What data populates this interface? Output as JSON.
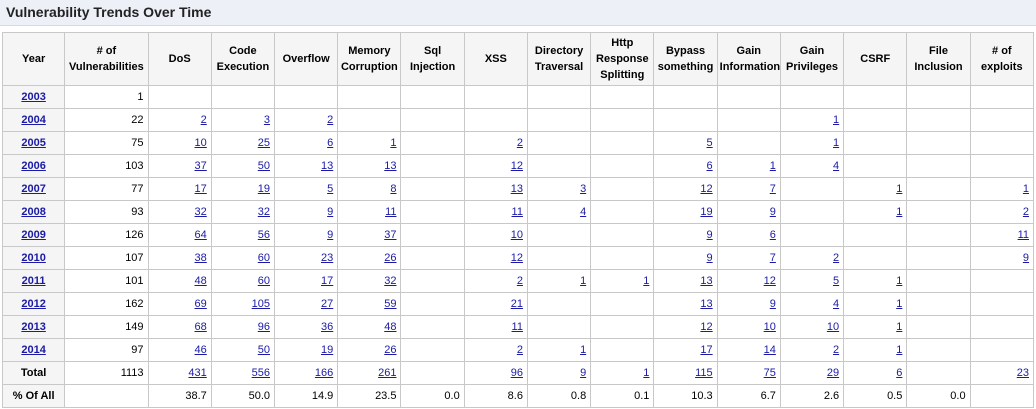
{
  "title": "Vulnerability Trends Over Time",
  "headers": [
    "Year",
    "# of Vulnerabilities",
    "DoS",
    "Code Execution",
    "Overflow",
    "Memory Corruption",
    "Sql Injection",
    "XSS",
    "Directory Traversal",
    "Http Response Splitting",
    "Bypass something",
    "Gain Information",
    "Gain Privileges",
    "CSRF",
    "File Inclusion",
    "# of exploits"
  ],
  "rows": [
    {
      "year": "2003",
      "count": "1",
      "cells": [
        "",
        "",
        "",
        "",
        "",
        "",
        "",
        "",
        "",
        "",
        "",
        "",
        "",
        ""
      ]
    },
    {
      "year": "2004",
      "count": "22",
      "cells": [
        "2",
        "3",
        "2",
        "",
        "",
        "",
        "",
        "",
        "",
        "",
        "1",
        "",
        "",
        ""
      ]
    },
    {
      "year": "2005",
      "count": "75",
      "cells": [
        "10",
        "25",
        "6",
        "1",
        "",
        "2",
        "",
        "",
        "5",
        "",
        "1",
        "",
        "",
        ""
      ]
    },
    {
      "year": "2006",
      "count": "103",
      "cells": [
        "37",
        "50",
        "13",
        "13",
        "",
        "12",
        "",
        "",
        "6",
        "1",
        "4",
        "",
        "",
        ""
      ]
    },
    {
      "year": "2007",
      "count": "77",
      "cells": [
        "17",
        "19",
        "5",
        "8",
        "",
        "13",
        "3",
        "",
        "12",
        "7",
        "",
        "1",
        "",
        "1"
      ]
    },
    {
      "year": "2008",
      "count": "93",
      "cells": [
        "32",
        "32",
        "9",
        "11",
        "",
        "11",
        "4",
        "",
        "19",
        "9",
        "",
        "1",
        "",
        "2"
      ]
    },
    {
      "year": "2009",
      "count": "126",
      "cells": [
        "64",
        "56",
        "9",
        "37",
        "",
        "10",
        "",
        "",
        "9",
        "6",
        "",
        "",
        "",
        "11"
      ]
    },
    {
      "year": "2010",
      "count": "107",
      "cells": [
        "38",
        "60",
        "23",
        "26",
        "",
        "12",
        "",
        "",
        "9",
        "7",
        "2",
        "",
        "",
        "9"
      ]
    },
    {
      "year": "2011",
      "count": "101",
      "cells": [
        "48",
        "60",
        "17",
        "32",
        "",
        "2",
        "1",
        "1",
        "13",
        "12",
        "5",
        "1",
        "",
        ""
      ]
    },
    {
      "year": "2012",
      "count": "162",
      "cells": [
        "69",
        "105",
        "27",
        "59",
        "",
        "21",
        "",
        "",
        "13",
        "9",
        "4",
        "1",
        "",
        ""
      ]
    },
    {
      "year": "2013",
      "count": "149",
      "cells": [
        "68",
        "96",
        "36",
        "48",
        "",
        "11",
        "",
        "",
        "12",
        "10",
        "10",
        "1",
        "",
        ""
      ]
    },
    {
      "year": "2014",
      "count": "97",
      "cells": [
        "46",
        "50",
        "19",
        "26",
        "",
        "2",
        "1",
        "",
        "17",
        "14",
        "2",
        "1",
        "",
        ""
      ]
    }
  ],
  "total": {
    "label": "Total",
    "count": "1113",
    "cells": [
      "431",
      "556",
      "166",
      "261",
      "",
      "96",
      "9",
      "1",
      "115",
      "75",
      "29",
      "6",
      "",
      "23"
    ]
  },
  "percent": {
    "label": "% Of All",
    "count": "",
    "cells": [
      "38.7",
      "50.0",
      "14.9",
      "23.5",
      "0.0",
      "8.6",
      "0.8",
      "0.1",
      "10.3",
      "6.7",
      "2.6",
      "0.5",
      "0.0",
      ""
    ]
  },
  "colors": {
    "link": "#1a1aa6",
    "header_bg": "#f5f5f5",
    "border": "#c8c8c8",
    "title_bg": "#eef0f8"
  }
}
